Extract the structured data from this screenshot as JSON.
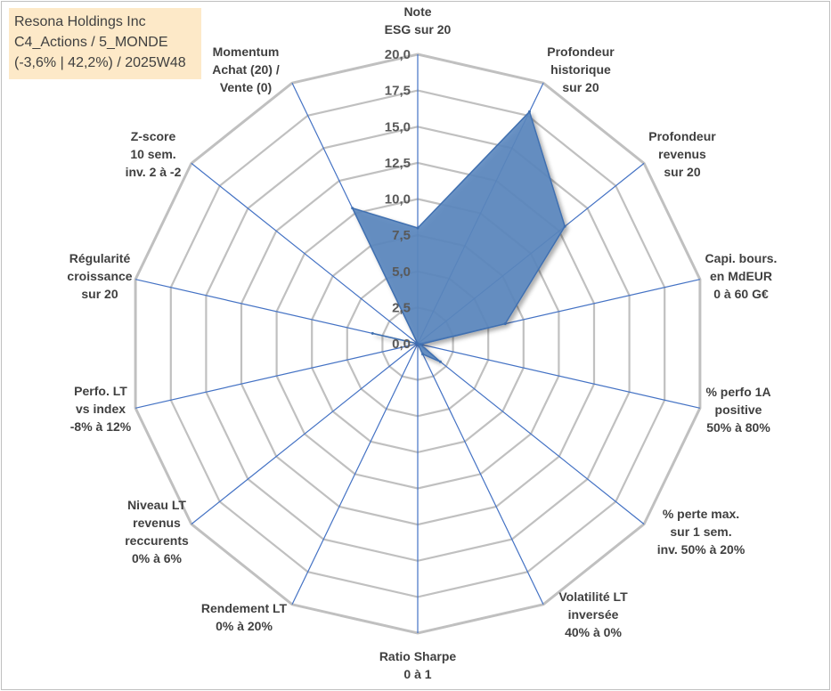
{
  "info": {
    "line1": "Resona Holdings Inc",
    "line2": "C4_Actions / 5_MONDE",
    "line3": "(-3,6% | 42,2%) / 2025W48"
  },
  "chart_data": {
    "type": "radar",
    "title": "",
    "rlim": [
      0,
      20
    ],
    "r_ticks": [
      "0,0",
      "2,5",
      "5,0",
      "7,5",
      "10,0",
      "12,5",
      "15,0",
      "17,5",
      "20,0"
    ],
    "grid": true,
    "axes": [
      [
        "Note",
        "ESG sur 20"
      ],
      [
        "Profondeur",
        "historique",
        "sur 20"
      ],
      [
        "Profondeur",
        "revenus",
        "sur 20"
      ],
      [
        "Capi. bours.",
        "en MdEUR",
        "0 à 60 G€"
      ],
      [
        "% perfo 1A",
        "positive",
        "50% à 80%"
      ],
      [
        "% perte max.",
        "sur 1 sem.",
        "inv. 50% à 20%"
      ],
      [
        "Volatilité LT",
        "inversée",
        "40% à 0%"
      ],
      [
        "Ratio Sharpe",
        "0 à 1"
      ],
      [
        "Rendement LT",
        "0% à 20%"
      ],
      [
        "Niveau LT",
        "revenus",
        "reccurents",
        "0% à 6%"
      ],
      [
        "Perfo. LT",
        "vs index",
        "-8% à 12%"
      ],
      [
        "Régularité",
        "croissance",
        "sur 20"
      ],
      [
        "Z-score",
        "10 sem.",
        "inv. 2 à -2"
      ],
      [
        "Momentum",
        "Achat (20) /",
        "Vente (0)"
      ]
    ],
    "series": [
      {
        "values": [
          8.0,
          17.8,
          13.0,
          6.2,
          0.2,
          2.0,
          0.8,
          0.0,
          0.0,
          0.0,
          0.0,
          3.2,
          0.0,
          10.4
        ],
        "color": "#4f7fc0"
      }
    ],
    "colors": {
      "fill": "#5b87bf",
      "stroke": "#3f6fb0",
      "grid": "#c0c0c0",
      "spoke": "#4472c4"
    }
  }
}
